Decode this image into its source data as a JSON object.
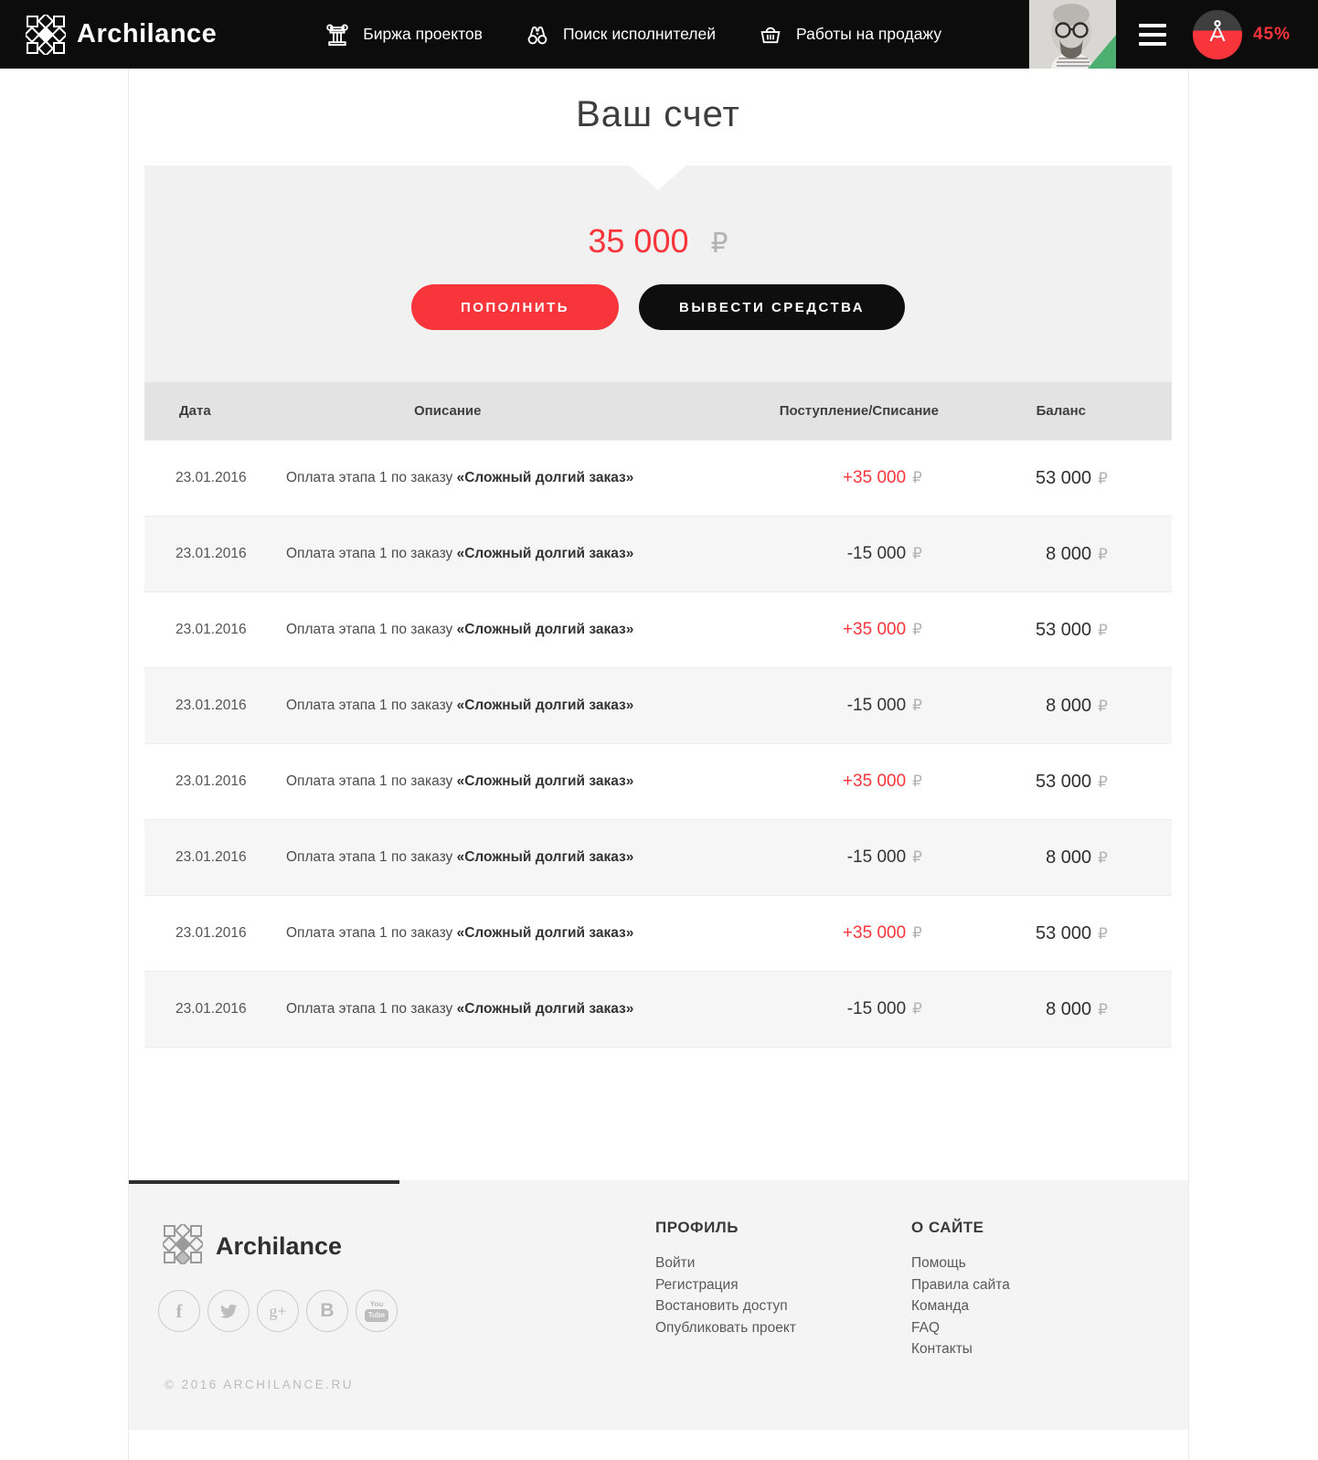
{
  "header": {
    "brand": "Archilance",
    "nav": [
      {
        "icon": "column-icon",
        "label": "Биржа проектов"
      },
      {
        "icon": "binoculars-icon",
        "label": "Поиск исполнителей"
      },
      {
        "icon": "basket-icon",
        "label": "Работы на продажу"
      }
    ],
    "progress_percent": "45%"
  },
  "page": {
    "title": "Ваш счет"
  },
  "account": {
    "balance": "35 000",
    "currency": "₽",
    "topup_label": "ПОПОЛНИТЬ",
    "withdraw_label": "ВЫВЕСТИ СРЕДСТВА"
  },
  "table": {
    "columns": [
      "Дата",
      "Описание",
      "Поступление/Списание",
      "Баланс"
    ],
    "currency": "₽",
    "rows": [
      {
        "date": "23.01.2016",
        "desc_prefix": "Оплата этапа 1 по заказу ",
        "desc_bold": "«Сложный долгий заказ»",
        "amount": "+35 000",
        "amount_type": "credit",
        "balance": "53 000"
      },
      {
        "date": "23.01.2016",
        "desc_prefix": "Оплата этапа 1 по заказу ",
        "desc_bold": "«Сложный долгий заказ»",
        "amount": "-15 000",
        "amount_type": "debit",
        "balance": "8 000"
      },
      {
        "date": "23.01.2016",
        "desc_prefix": "Оплата этапа 1 по заказу ",
        "desc_bold": "«Сложный долгий заказ»",
        "amount": "+35 000",
        "amount_type": "credit",
        "balance": "53 000"
      },
      {
        "date": "23.01.2016",
        "desc_prefix": "Оплата этапа 1 по заказу ",
        "desc_bold": "«Сложный долгий заказ»",
        "amount": "-15 000",
        "amount_type": "debit",
        "balance": "8 000"
      },
      {
        "date": "23.01.2016",
        "desc_prefix": "Оплата этапа 1 по заказу ",
        "desc_bold": "«Сложный долгий заказ»",
        "amount": "+35 000",
        "amount_type": "credit",
        "balance": "53 000"
      },
      {
        "date": "23.01.2016",
        "desc_prefix": "Оплата этапа 1 по заказу ",
        "desc_bold": "«Сложный долгий заказ»",
        "amount": "-15 000",
        "amount_type": "debit",
        "balance": "8 000"
      },
      {
        "date": "23.01.2016",
        "desc_prefix": "Оплата этапа 1 по заказу ",
        "desc_bold": "«Сложный долгий заказ»",
        "amount": "+35 000",
        "amount_type": "credit",
        "balance": "53 000"
      },
      {
        "date": "23.01.2016",
        "desc_prefix": "Оплата этапа 1 по заказу ",
        "desc_bold": "«Сложный долгий заказ»",
        "amount": "-15 000",
        "amount_type": "debit",
        "balance": "8 000"
      }
    ]
  },
  "footer": {
    "brand": "Archilance",
    "copyright": "© 2016 ARCHILANCE.RU",
    "social": {
      "facebook_glyph": "f",
      "googleplus_glyph": "g+",
      "behance_glyph": "B",
      "youtube_top": "You",
      "youtube_box": "Tube"
    },
    "columns": [
      {
        "title": "ПРОФИЛЬ",
        "links": [
          "Войти",
          "Регистрация",
          "Востановить доступ",
          "Опубликовать проект"
        ]
      },
      {
        "title": "О САЙТЕ",
        "links": [
          "Помощь",
          "Правила сайта",
          "Команда",
          "FAQ",
          "Контакты"
        ]
      }
    ]
  },
  "colors": {
    "accent_red": "#f8353b",
    "header_bg": "#0c0c0c",
    "panel_bg": "#f1f1f1",
    "table_header_bg": "#e3e3e3",
    "alt_row_bg": "#f6f6f6",
    "footer_bg": "#f4f4f4",
    "ruble_gray": "#b3b3b3",
    "avatar_corner_green": "#4caf71"
  }
}
